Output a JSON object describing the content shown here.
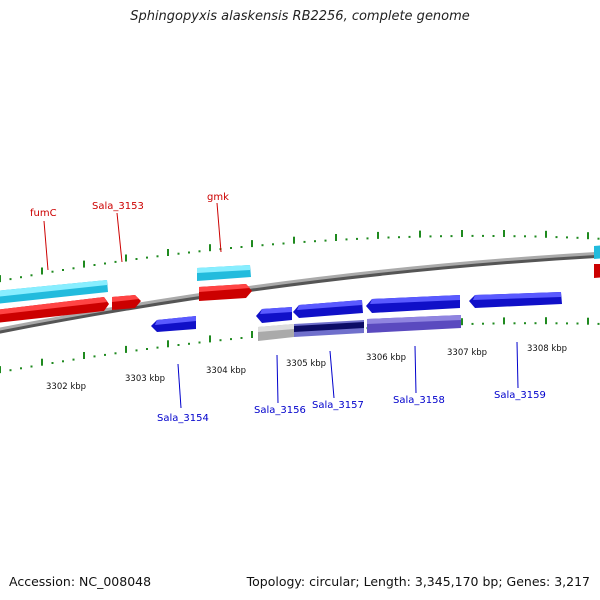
{
  "title": "Sphingopyxis alaskensis RB2256, complete genome",
  "accession": "Accession: NC_008048",
  "summary": "Topology: circular; Length: 3,345,170 bp; Genes: 3,217",
  "colors": {
    "backbone": "#8a8a8a",
    "tick": "#1f8a1f",
    "forward_label": "#cc0000",
    "reverse_label": "#0000cc",
    "cyan_gene": "#33ccee",
    "red_gene": "#ee1111",
    "blue_gene": "#1a1ae6",
    "purple_gene": "#6a5acd",
    "gray_gene": "#bbbbbb",
    "navy_gene": "#101070"
  },
  "kbp_labels": [
    "3302 kbp",
    "3303 kbp",
    "3304 kbp",
    "3305 kbp",
    "3306 kbp",
    "3307 kbp",
    "3308 kbp"
  ],
  "forward_gene_labels": [
    "fumC",
    "Sala_3153",
    "gmk"
  ],
  "reverse_gene_labels": [
    "Sala_3154",
    "Sala_3156",
    "Sala_3157",
    "Sala_3158",
    "Sala_3159"
  ]
}
